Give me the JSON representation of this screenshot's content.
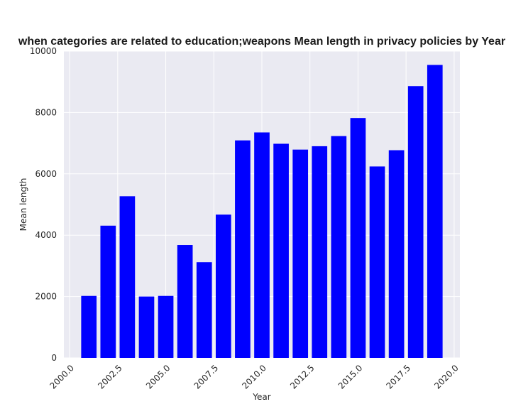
{
  "chart_data": {
    "type": "bar",
    "title": "when categories are related to education;weapons Mean length in privacy policies by Year",
    "xlabel": "Year",
    "ylabel": "Mean length",
    "x": [
      2001,
      2002,
      2003,
      2004,
      2005,
      2006,
      2007,
      2008,
      2009,
      2010,
      2011,
      2012,
      2013,
      2014,
      2015,
      2016,
      2017,
      2018,
      2019
    ],
    "values": [
      2020,
      4310,
      5270,
      2000,
      2020,
      3680,
      3120,
      4670,
      7090,
      7350,
      6980,
      6790,
      6900,
      7230,
      7820,
      6240,
      6770,
      8860,
      9550
    ],
    "xlim": [
      1999.7,
      2020.3
    ],
    "ylim": [
      0,
      10000
    ],
    "xticks": [
      2000.0,
      2002.5,
      2005.0,
      2007.5,
      2010.0,
      2012.5,
      2015.0,
      2017.5,
      2020.0
    ],
    "xtick_labels": [
      "2000.0",
      "2002.5",
      "2005.0",
      "2007.5",
      "2010.0",
      "2012.5",
      "2015.0",
      "2017.5",
      "2020.0"
    ],
    "yticks": [
      0,
      2000,
      4000,
      6000,
      8000,
      10000
    ],
    "ytick_labels": [
      "0",
      "2000",
      "4000",
      "6000",
      "8000",
      "10000"
    ],
    "grid": true,
    "bar_color": "#0000ff",
    "background_color": "#eaeaf2",
    "grid_color": "#ffffff"
  }
}
